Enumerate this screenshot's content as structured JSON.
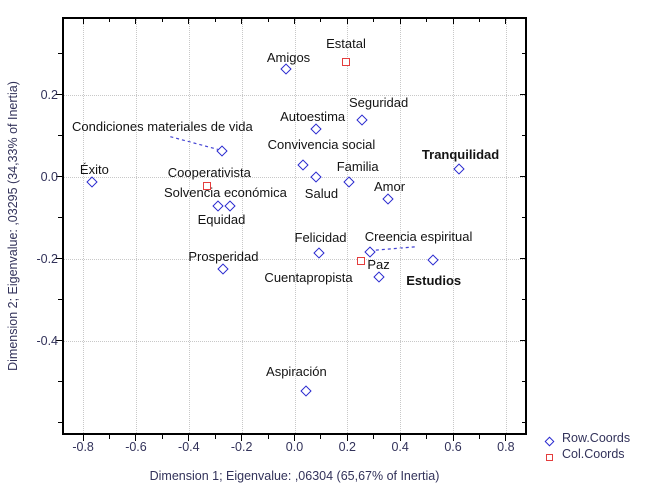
{
  "chart_data": {
    "type": "scatter",
    "xlabel": "Dimension 1; Eigenvalue: ,06304 (65,67% of Inertia)",
    "ylabel": "Dimension 2; Eigenvalue: ,03295 (34,33% of Inertia)",
    "xlim": [
      -0.88,
      0.88
    ],
    "ylim": [
      -0.63,
      0.39
    ],
    "grid": true,
    "x_major_ticks": [
      -0.8,
      -0.6,
      -0.4,
      -0.2,
      0,
      0.2,
      0.4,
      0.6,
      0.8
    ],
    "x_tick_labels": [
      "-0.8",
      "-0.6",
      "-0.4",
      "-0.2",
      "0.0",
      "0.2",
      "0.4",
      "0.6",
      "0.8"
    ],
    "x_minor_ticks": [
      -0.7,
      -0.5,
      -0.3,
      -0.1,
      0.1,
      0.3,
      0.5,
      0.7
    ],
    "y_major_ticks": [
      0.2,
      0,
      -0.2,
      -0.4
    ],
    "y_tick_labels": [
      "0.2",
      "0.0",
      "-0.2",
      "-0.4"
    ],
    "y_minor_ticks": [
      0.3,
      0.1,
      -0.1,
      -0.3,
      -0.5,
      -0.6
    ],
    "colors": {
      "row_points": "#2929cf",
      "col_points": "#e43d3d",
      "grid": "#c8c8c8",
      "leader": "#4444d4",
      "label_text": "#141414",
      "axis_text": "#32325a"
    },
    "series": [
      {
        "name": "Row.Coords",
        "marker": "diamond",
        "color": "#2929cf",
        "points": [
          {
            "label": "Éxito",
            "x": -0.765,
            "y": -0.012,
            "dx": 2,
            "dy": -12
          },
          {
            "label": "Condiciones materiales de vida",
            "x": -0.273,
            "y": 0.063,
            "dx": -60,
            "dy": -24
          },
          {
            "label": "Solvencia económica",
            "x": -0.288,
            "y": -0.071,
            "dx": 7,
            "dy": -13
          },
          {
            "label": "Equidad",
            "x": -0.246,
            "y": -0.071,
            "dx": -8,
            "dy": 14
          },
          {
            "label": "Prosperidad",
            "x": -0.269,
            "y": -0.224,
            "dx": 0,
            "dy": -12
          },
          {
            "label": "Amigos",
            "x": -0.034,
            "y": 0.263,
            "dx": 3,
            "dy": -11
          },
          {
            "label": "Autoestima",
            "x": 0.08,
            "y": 0.117,
            "dx": -3,
            "dy": -12
          },
          {
            "label": "Seguridad",
            "x": 0.254,
            "y": 0.139,
            "dx": 17,
            "dy": -17
          },
          {
            "label": "Convivencia social",
            "x": 0.034,
            "y": 0.029,
            "dx": 18,
            "dy": -20
          },
          {
            "label": "Salud",
            "x": 0.083,
            "y": 0.0,
            "dx": 5,
            "dy": 17
          },
          {
            "label": "Familia",
            "x": 0.205,
            "y": -0.012,
            "dx": 9,
            "dy": -15
          },
          {
            "label": "Amor",
            "x": 0.352,
            "y": -0.054,
            "dx": 2,
            "dy": -12
          },
          {
            "label": "Tranquilidad",
            "x": 0.621,
            "y": 0.02,
            "dx": 2,
            "dy": -14,
            "bold": true
          },
          {
            "label": "Felicidad",
            "x": 0.091,
            "y": -0.185,
            "dx": 2,
            "dy": -15
          },
          {
            "label": "Creencia espiritual",
            "x": 0.284,
            "y": -0.183,
            "dx": 49,
            "dy": -15
          },
          {
            "label": "Cuentapropista",
            "x": 0.318,
            "y": -0.244,
            "dx": -70,
            "dy": 1
          },
          {
            "label": "Estudios",
            "x": 0.523,
            "y": -0.202,
            "dx": 1,
            "dy": 21,
            "bold": true
          },
          {
            "label": "Aspiración",
            "x": 0.045,
            "y": -0.522,
            "dx": -10,
            "dy": -19
          }
        ]
      },
      {
        "name": "Col.Coords",
        "marker": "square",
        "color": "#e43d3d",
        "points": [
          {
            "label": "Estatal",
            "x": 0.195,
            "y": 0.28,
            "dx": 0,
            "dy": -18
          },
          {
            "label": "Cooperativista",
            "x": -0.33,
            "y": -0.022,
            "dx": 2,
            "dy": -13
          },
          {
            "label": "Paz",
            "x": 0.25,
            "y": -0.205,
            "dx": 18,
            "dy": 4
          }
        ]
      }
    ],
    "leaders": [
      {
        "from": [
          -0.47,
          0.098
        ],
        "to": [
          -0.285,
          0.066
        ]
      },
      {
        "from": [
          0.455,
          -0.171
        ],
        "to": [
          0.307,
          -0.179
        ]
      }
    ],
    "legend": {
      "position": "bottom-right",
      "entries": [
        {
          "label": "Row.Coords",
          "marker": "diamond",
          "color": "#2929cf"
        },
        {
          "label": "Col.Coords",
          "marker": "square",
          "color": "#e43d3d"
        }
      ]
    }
  }
}
